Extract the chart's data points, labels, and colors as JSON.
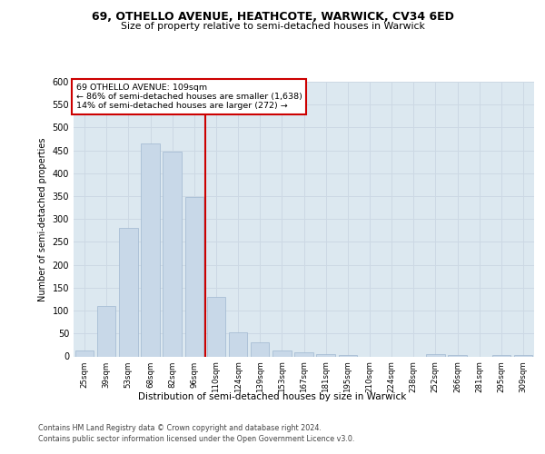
{
  "title1": "69, OTHELLO AVENUE, HEATHCOTE, WARWICK, CV34 6ED",
  "title2": "Size of property relative to semi-detached houses in Warwick",
  "xlabel": "Distribution of semi-detached houses by size in Warwick",
  "ylabel": "Number of semi-detached properties",
  "footer1": "Contains HM Land Registry data © Crown copyright and database right 2024.",
  "footer2": "Contains public sector information licensed under the Open Government Licence v3.0.",
  "annotation_line1": "69 OTHELLO AVENUE: 109sqm",
  "annotation_line2": "← 86% of semi-detached houses are smaller (1,638)",
  "annotation_line3": "14% of semi-detached houses are larger (272) →",
  "bar_color": "#c8d8e8",
  "bar_edge_color": "#a0b8d0",
  "subject_line_color": "#cc0000",
  "annotation_box_color": "#cc0000",
  "grid_color": "#ccd8e4",
  "background_color": "#dce8f0",
  "categories": [
    "25sqm",
    "39sqm",
    "53sqm",
    "68sqm",
    "82sqm",
    "96sqm",
    "110sqm",
    "124sqm",
    "139sqm",
    "153sqm",
    "167sqm",
    "181sqm",
    "195sqm",
    "210sqm",
    "224sqm",
    "238sqm",
    "252sqm",
    "266sqm",
    "281sqm",
    "295sqm",
    "309sqm"
  ],
  "values": [
    12,
    110,
    280,
    465,
    448,
    348,
    130,
    53,
    30,
    12,
    8,
    5,
    2,
    0,
    0,
    0,
    5,
    3,
    0,
    2,
    3
  ],
  "ylim": [
    0,
    600
  ],
  "yticks": [
    0,
    50,
    100,
    150,
    200,
    250,
    300,
    350,
    400,
    450,
    500,
    550,
    600
  ],
  "subject_bin_index": 6
}
